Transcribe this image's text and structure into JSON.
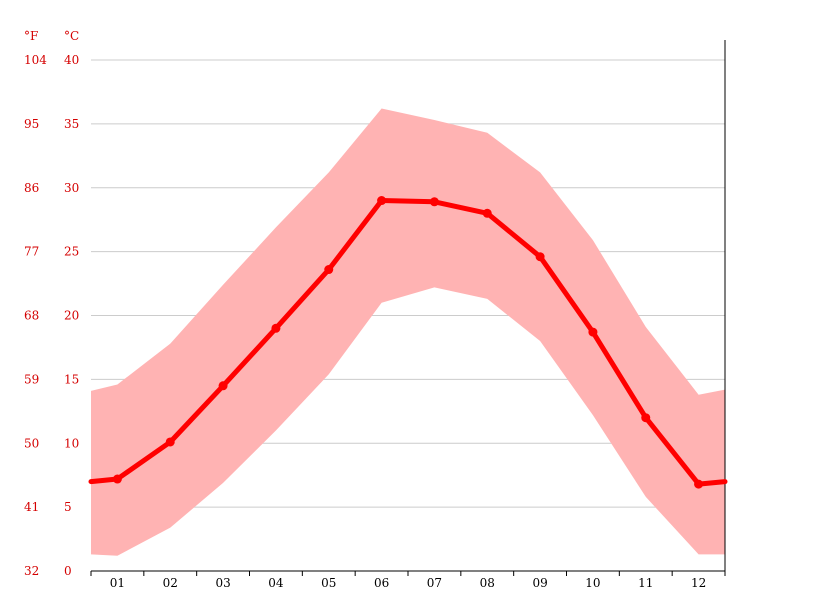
{
  "chart_data": {
    "type": "area",
    "title": "",
    "unit_labels": {
      "fahrenheit": "°F",
      "celsius": "°C"
    },
    "categories": [
      "01",
      "02",
      "03",
      "04",
      "05",
      "06",
      "07",
      "08",
      "09",
      "10",
      "11",
      "12"
    ],
    "x_ticks": [
      "01",
      "02",
      "03",
      "04",
      "05",
      "06",
      "07",
      "08",
      "09",
      "10",
      "11",
      "12"
    ],
    "y_ticks_c": [
      "0",
      "5",
      "10",
      "15",
      "20",
      "25",
      "30",
      "35",
      "40"
    ],
    "y_ticks_f": [
      "32",
      "41",
      "50",
      "59",
      "68",
      "77",
      "86",
      "95",
      "104"
    ],
    "ylim_c": [
      0,
      40
    ],
    "grid": true,
    "series": [
      {
        "mean": [
          7.2,
          10.1,
          14.5,
          19.0,
          23.6,
          29.0,
          28.9,
          28.0,
          24.6,
          18.7,
          12.0,
          6.8
        ],
        "max": [
          14.6,
          17.8,
          22.4,
          26.9,
          31.2,
          36.2,
          35.3,
          34.3,
          31.2,
          25.9,
          19.1,
          13.8
        ],
        "min": [
          1.2,
          3.4,
          6.9,
          11.0,
          15.4,
          21.0,
          22.2,
          21.3,
          18.0,
          12.2,
          5.8,
          1.3
        ]
      }
    ],
    "edge_values": {
      "mean_start": 7.0,
      "mean_end": 7.0,
      "max_start": 14.1,
      "max_end": 14.2,
      "min_start": 1.3,
      "min_end": 1.3
    },
    "colors": {
      "line": "#ff0000",
      "band": "#ffb3b3",
      "grid": "#cccccc",
      "axis_text": "#d40000"
    }
  }
}
